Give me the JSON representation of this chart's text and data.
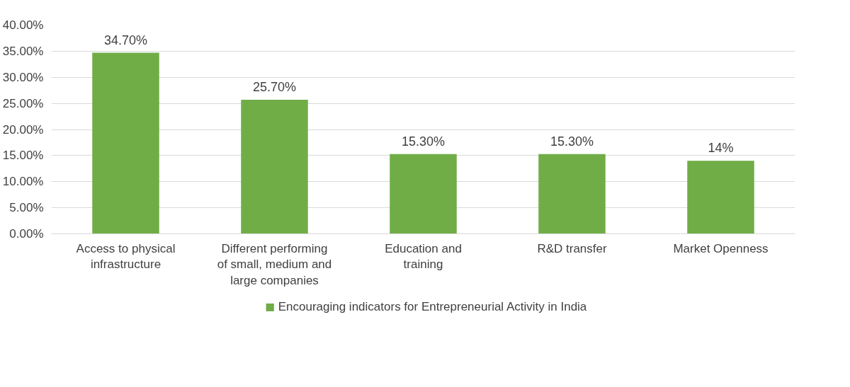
{
  "chart_data": {
    "type": "bar",
    "categories": [
      "Access to physical infrastructure",
      "Different performing of small, medium and large companies",
      "Education and training",
      "R&D transfer",
      "Market Openness"
    ],
    "series": [
      {
        "name": "Encouraging indicators for Entrepreneurial Activity in India",
        "color": "#70ad47",
        "values": [
          34.7,
          25.7,
          15.3,
          15.3,
          14
        ],
        "value_labels": [
          "34.70%",
          "25.70%",
          "15.30%",
          "15.30%",
          "14%"
        ]
      }
    ],
    "ylim": [
      0,
      40
    ],
    "yticks": [
      {
        "value": 0,
        "label": "0.00%"
      },
      {
        "value": 5,
        "label": "5.00%"
      },
      {
        "value": 10,
        "label": "10.00%"
      },
      {
        "value": 15,
        "label": "15.00%"
      },
      {
        "value": 20,
        "label": "20.00%"
      },
      {
        "value": 25,
        "label": "25.00%"
      },
      {
        "value": 30,
        "label": "30.00%"
      },
      {
        "value": 35,
        "label": "35.00%"
      },
      {
        "value": 40,
        "label": "40.00%"
      }
    ],
    "grid": "y",
    "legend": "bottom"
  }
}
